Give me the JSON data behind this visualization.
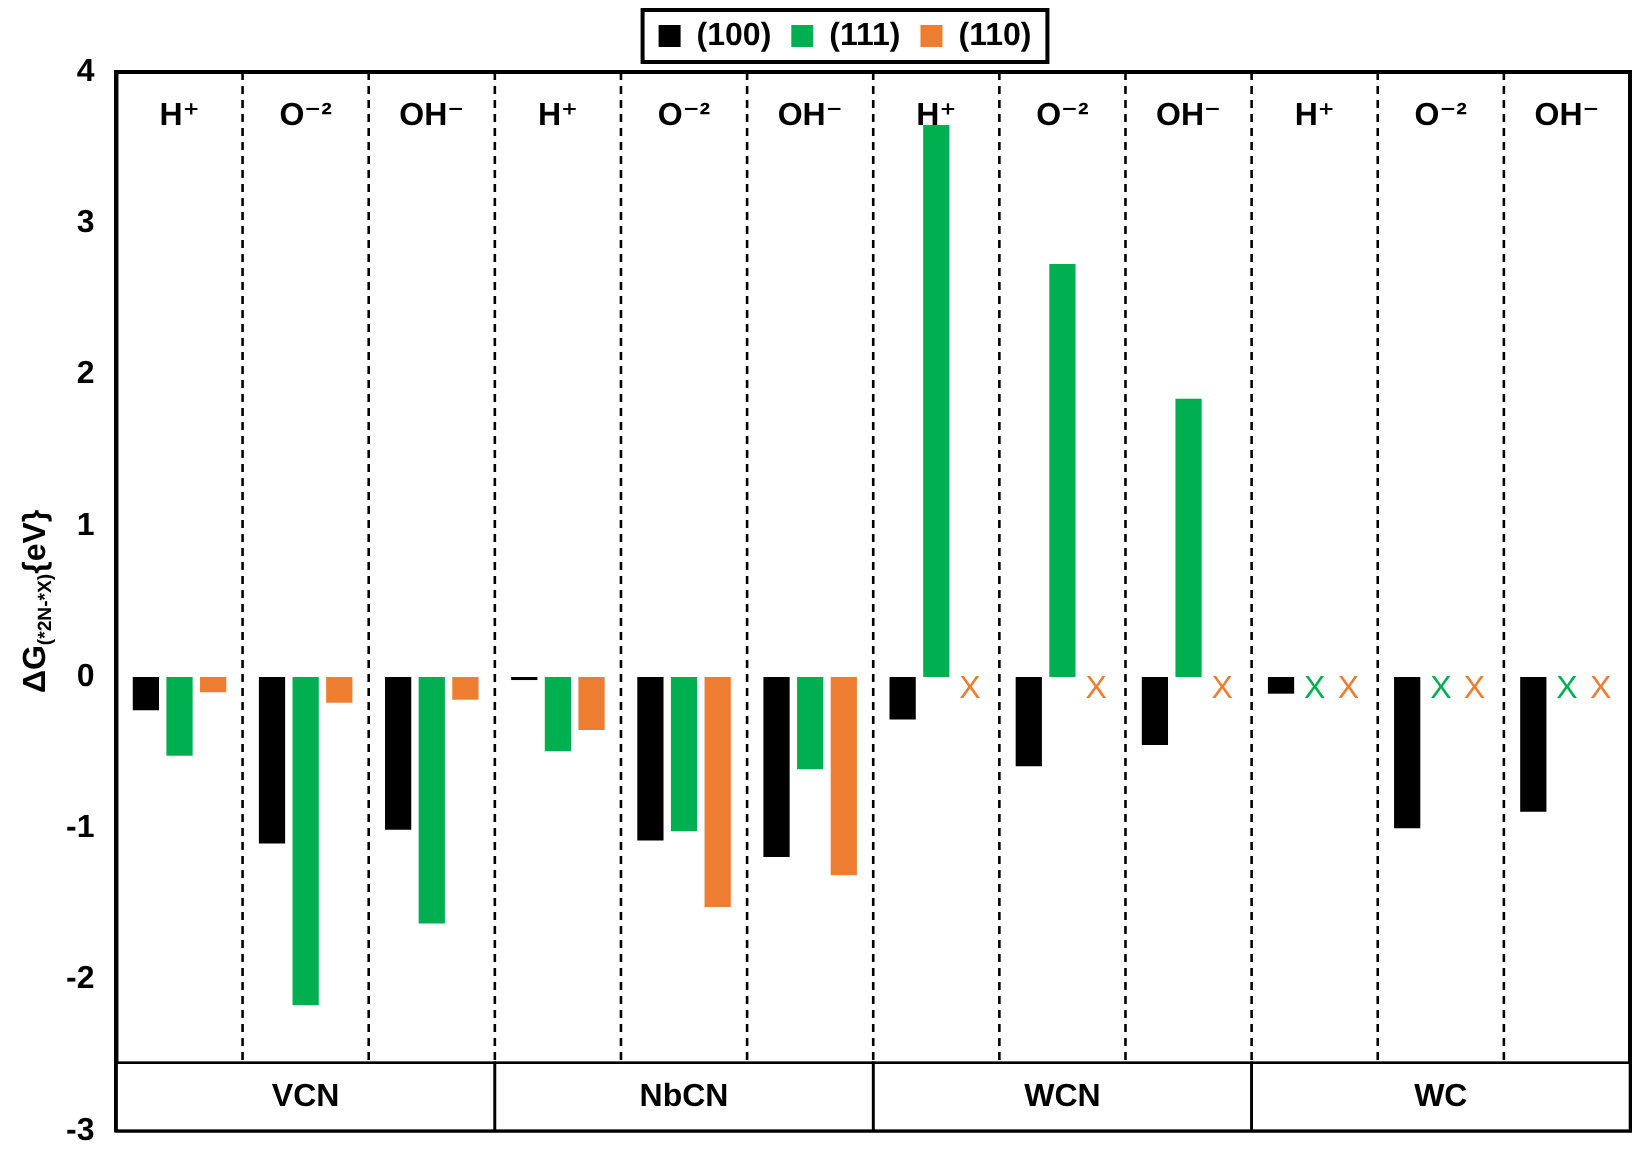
{
  "chart_data": {
    "type": "bar",
    "ylabel": "ΔG$_{(*2N-*X)}${eV}",
    "categories": [
      "H⁺",
      "O⁻²",
      "OH⁻",
      "H⁺",
      "O⁻²",
      "OH⁻",
      "H⁺",
      "O⁻²",
      "OH⁻",
      "H⁺",
      "O⁻²",
      "OH⁻"
    ],
    "annotations": [
      "VCN",
      "NbCN",
      "WCN",
      "WC"
    ],
    "series": [
      {
        "name": "(100)",
        "color": "#000000",
        "values": [
          -0.22,
          -1.1,
          -1.01,
          -0.02,
          -1.08,
          -1.19,
          -0.28,
          -0.59,
          -0.45,
          -0.11,
          -1.0,
          -0.89
        ]
      },
      {
        "name": "(111)",
        "color": "#00b050",
        "values": [
          -0.52,
          -2.17,
          -1.63,
          -0.49,
          -1.02,
          -0.61,
          3.65,
          2.73,
          1.84,
          null,
          null,
          null
        ],
        "value_labels": [
          null,
          null,
          null,
          null,
          null,
          null,
          null,
          null,
          null,
          "X",
          "X",
          "X"
        ]
      },
      {
        "name": "(110)",
        "color": "#ed7d31",
        "values": [
          -0.1,
          -0.17,
          -0.15,
          -0.35,
          -1.52,
          -1.31,
          null,
          null,
          null,
          null,
          null,
          null
        ],
        "value_labels": [
          null,
          null,
          null,
          null,
          null,
          null,
          "X",
          "X",
          "X",
          "X",
          "X",
          "X"
        ]
      }
    ],
    "bands": [
      {
        "axis": "y",
        "from": -3,
        "to": -2.55,
        "color": "#ffffff"
      }
    ],
    "ylim": [
      -3,
      4
    ],
    "yticks": [
      -3,
      -2,
      -1,
      0,
      1,
      2,
      3,
      4
    ],
    "grid": false,
    "legend": "top"
  }
}
